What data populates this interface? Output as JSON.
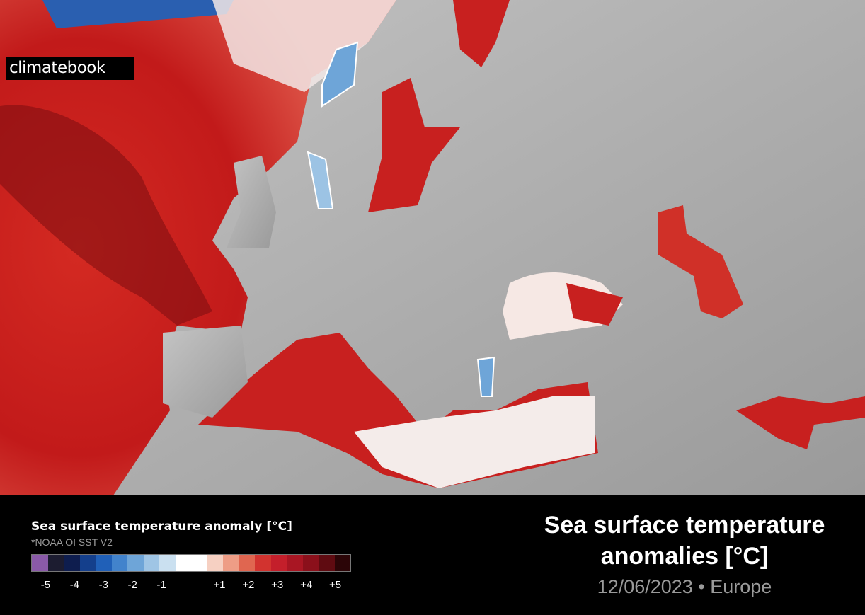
{
  "logo": "climatebook",
  "legend": {
    "title": "Sea surface temperature anomaly [°C]",
    "source": "*NOAA OI SST V2",
    "colors": [
      "#8a5aa8",
      "#1c1c30",
      "#0e1d4e",
      "#143f8c",
      "#2060b8",
      "#4283cc",
      "#6ea5d8",
      "#9fc5e5",
      "#cae0f0",
      "#ffffff",
      "#ffffff",
      "#f6d0c2",
      "#ee9d86",
      "#e06650",
      "#d2332f",
      "#c41f2b",
      "#a91623",
      "#8b101b",
      "#5f0b11",
      "#2b0507"
    ],
    "clim": [
      -5.5,
      5.5
    ],
    "ticks": [
      -5,
      -4,
      -3,
      -2,
      -1,
      {
        "value": 1,
        "label": "+1"
      },
      {
        "value": 2,
        "label": "+2"
      },
      {
        "value": 3,
        "label": "+3"
      },
      {
        "value": 4,
        "label": "+4"
      },
      {
        "value": 5,
        "label": "+5"
      }
    ]
  },
  "title": "Sea surface temperature anomalies [°C]",
  "subtitle": "12/06/2023 • Europe"
}
